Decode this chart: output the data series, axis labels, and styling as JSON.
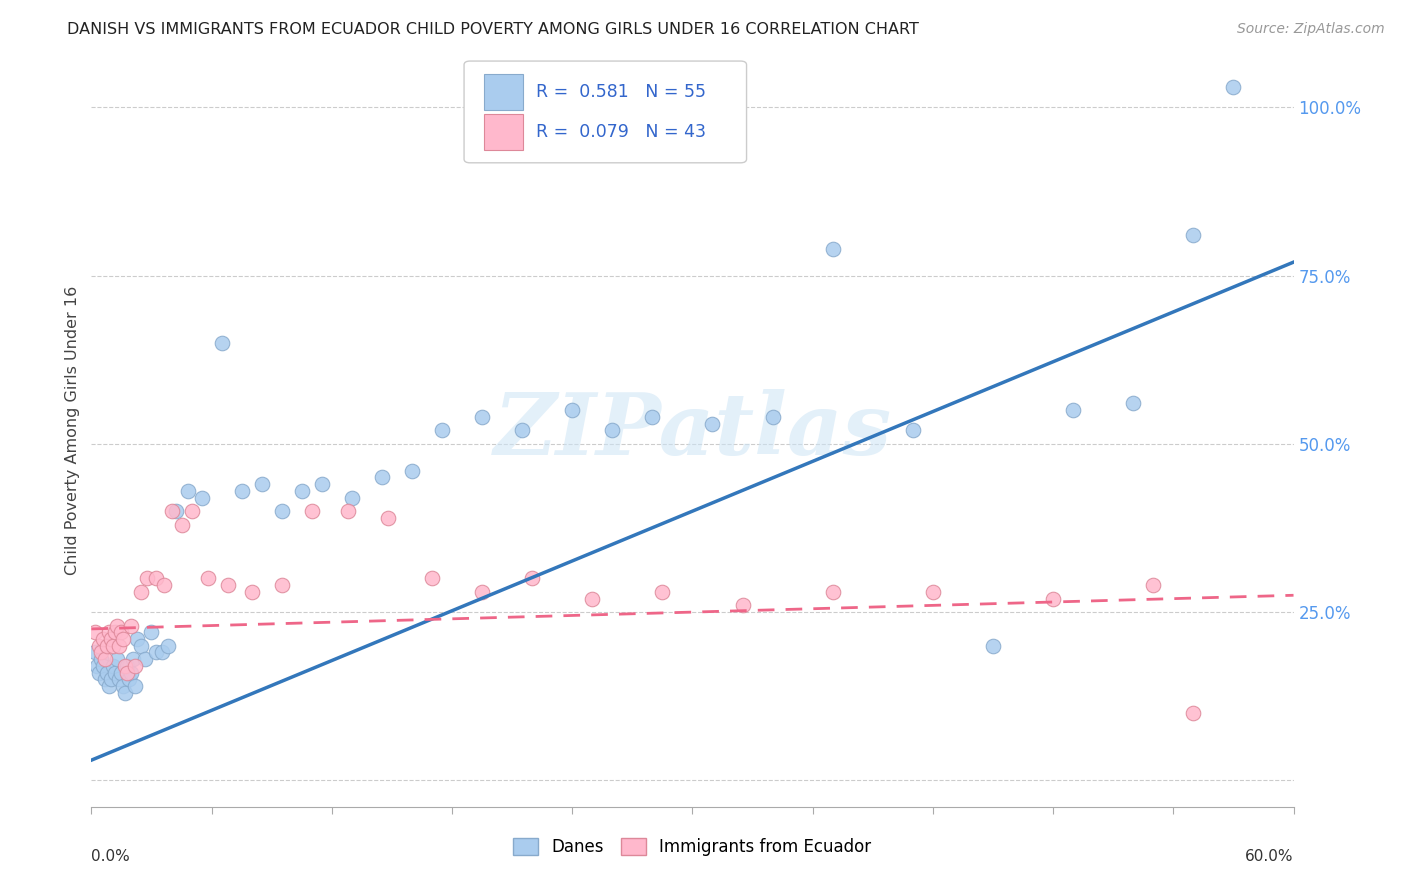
{
  "title": "DANISH VS IMMIGRANTS FROM ECUADOR CHILD POVERTY AMONG GIRLS UNDER 16 CORRELATION CHART",
  "source": "Source: ZipAtlas.com",
  "ylabel": "Child Poverty Among Girls Under 16",
  "xmin": 0.0,
  "xmax": 0.6,
  "ymin": -0.04,
  "ymax": 1.08,
  "background_color": "#ffffff",
  "watermark_text": "ZIPatlas",
  "danes_color": "#aaccee",
  "danes_edge": "#88aacc",
  "ecuador_color": "#ffb8cc",
  "ecuador_edge": "#dd8899",
  "blue_line_color": "#3377bb",
  "pink_line_color": "#ee6688",
  "pink_line_dash": "#ee99aa",
  "danes_x": [
    0.002,
    0.003,
    0.004,
    0.005,
    0.006,
    0.007,
    0.008,
    0.009,
    0.01,
    0.011,
    0.012,
    0.013,
    0.014,
    0.015,
    0.016,
    0.017,
    0.018,
    0.019,
    0.02,
    0.021,
    0.022,
    0.023,
    0.025,
    0.027,
    0.03,
    0.032,
    0.035,
    0.038,
    0.042,
    0.048,
    0.055,
    0.065,
    0.075,
    0.085,
    0.095,
    0.105,
    0.115,
    0.13,
    0.145,
    0.16,
    0.175,
    0.195,
    0.215,
    0.24,
    0.26,
    0.28,
    0.31,
    0.34,
    0.37,
    0.41,
    0.45,
    0.49,
    0.52,
    0.55,
    0.57
  ],
  "danes_y": [
    0.19,
    0.17,
    0.16,
    0.18,
    0.17,
    0.15,
    0.16,
    0.14,
    0.15,
    0.17,
    0.16,
    0.18,
    0.15,
    0.16,
    0.14,
    0.13,
    0.17,
    0.15,
    0.16,
    0.18,
    0.14,
    0.21,
    0.2,
    0.18,
    0.22,
    0.19,
    0.19,
    0.2,
    0.4,
    0.43,
    0.42,
    0.65,
    0.43,
    0.44,
    0.4,
    0.43,
    0.44,
    0.42,
    0.45,
    0.46,
    0.52,
    0.54,
    0.52,
    0.55,
    0.52,
    0.54,
    0.53,
    0.54,
    0.79,
    0.52,
    0.2,
    0.55,
    0.56,
    0.81,
    1.03
  ],
  "ecuador_x": [
    0.002,
    0.004,
    0.005,
    0.006,
    0.007,
    0.008,
    0.009,
    0.01,
    0.011,
    0.012,
    0.013,
    0.014,
    0.015,
    0.016,
    0.017,
    0.018,
    0.02,
    0.022,
    0.025,
    0.028,
    0.032,
    0.036,
    0.04,
    0.045,
    0.05,
    0.058,
    0.068,
    0.08,
    0.095,
    0.11,
    0.128,
    0.148,
    0.17,
    0.195,
    0.22,
    0.25,
    0.285,
    0.325,
    0.37,
    0.42,
    0.48,
    0.53,
    0.55
  ],
  "ecuador_y": [
    0.22,
    0.2,
    0.19,
    0.21,
    0.18,
    0.2,
    0.22,
    0.21,
    0.2,
    0.22,
    0.23,
    0.2,
    0.22,
    0.21,
    0.17,
    0.16,
    0.23,
    0.17,
    0.28,
    0.3,
    0.3,
    0.29,
    0.4,
    0.38,
    0.4,
    0.3,
    0.29,
    0.28,
    0.29,
    0.4,
    0.4,
    0.39,
    0.3,
    0.28,
    0.3,
    0.27,
    0.28,
    0.26,
    0.28,
    0.28,
    0.27,
    0.29,
    0.1
  ],
  "grid_color": "#cccccc",
  "grid_yticks": [
    0.0,
    0.25,
    0.5,
    0.75,
    1.0
  ],
  "right_tick_labels": [
    "",
    "25.0%",
    "50.0%",
    "75.0%",
    "100.0%"
  ],
  "right_tick_color": "#5599ee"
}
